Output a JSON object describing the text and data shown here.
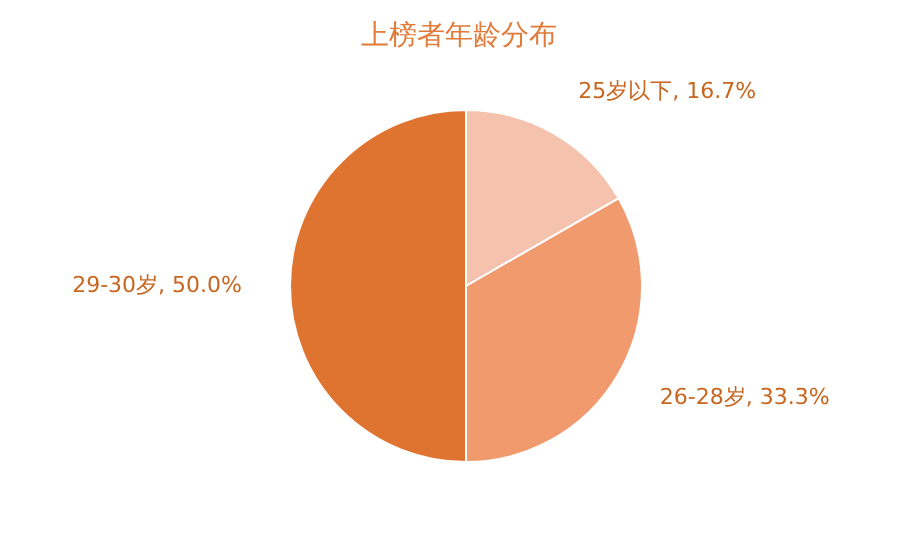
{
  "chart_data": {
    "type": "pie",
    "title": "上榜者年龄分布",
    "categories": [
      "25岁以下",
      "26-28岁",
      "29-30岁"
    ],
    "values": [
      16.7,
      33.3,
      50.0
    ],
    "value_labels": [
      "16.7%",
      "33.3%",
      "50.0%"
    ],
    "colors": [
      "#f5c2ae",
      "#f09a6e",
      "#de7430"
    ],
    "legend": false
  }
}
